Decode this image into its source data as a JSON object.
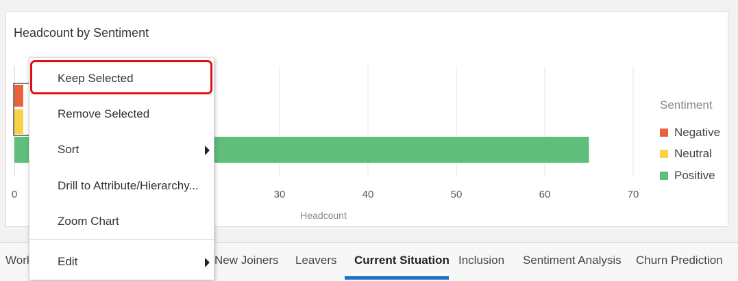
{
  "chart_data": {
    "type": "bar",
    "orientation": "horizontal",
    "stacked": true,
    "title": "Headcount by Sentiment",
    "xlabel": "Headcount",
    "ylabel": "",
    "xlim": [
      0,
      70
    ],
    "x_ticks": [
      "0",
      "30",
      "40",
      "50",
      "60",
      "70"
    ],
    "grid": true,
    "legend_title": "Sentiment",
    "legend_position": "right",
    "series": [
      {
        "name": "Negative",
        "color": "#e8613c",
        "values": [
          1
        ]
      },
      {
        "name": "Neutral",
        "color": "#f7d147",
        "values": [
          1
        ]
      },
      {
        "name": "Positive",
        "color": "#5fbf7a",
        "values": [
          65
        ]
      }
    ]
  },
  "context_menu": {
    "items": [
      {
        "label": "Keep Selected",
        "has_submenu": false,
        "highlighted": true
      },
      {
        "label": "Remove Selected",
        "has_submenu": false
      },
      {
        "label": "Sort",
        "has_submenu": true
      },
      {
        "label": "Drill to Attribute/Hierarchy...",
        "has_submenu": false
      },
      {
        "label": "Zoom Chart",
        "has_submenu": false
      },
      {
        "label": "Edit",
        "has_submenu": true
      }
    ]
  },
  "tabs": {
    "items": [
      {
        "label": "Work"
      },
      {
        "label": "New Joiners"
      },
      {
        "label": "Leavers"
      },
      {
        "label": "Current Situation",
        "active": true
      },
      {
        "label": "Inclusion"
      },
      {
        "label": "Sentiment Analysis"
      },
      {
        "label": "Churn Prediction"
      }
    ]
  },
  "colors": {
    "accent": "#1a73c8",
    "highlight": "#e01010"
  }
}
